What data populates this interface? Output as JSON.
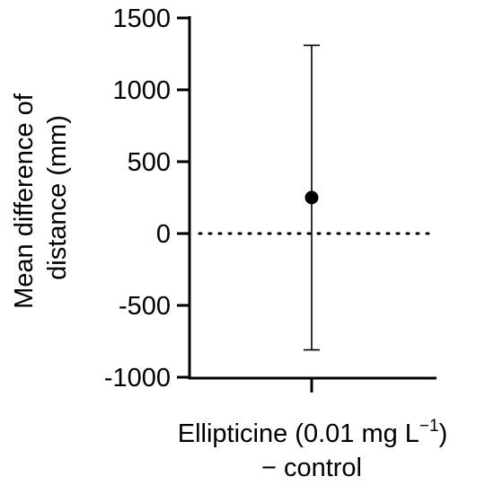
{
  "chart_data": {
    "type": "scatter",
    "title": "",
    "ylabel_lines": [
      "Mean difference of",
      "distance (mm)"
    ],
    "xlabel_lines": [
      "Ellipticine (0.01 mg L",
      "−1",
      ")",
      "− control"
    ],
    "categories": [
      "Ellipticine (0.01 mg L⁻¹) − control"
    ],
    "yticks": [
      "1500",
      "1000",
      "500",
      "0",
      "-500",
      "-1000"
    ],
    "ylim": [
      -1000,
      1500
    ],
    "points": [
      {
        "category": "Ellipticine (0.01 mg L⁻¹) − control",
        "mean": 250,
        "ci_low": -810,
        "ci_high": 1310
      }
    ],
    "reference_line": {
      "y": 0,
      "style": "dotted"
    },
    "grid": false,
    "legend": "none"
  }
}
